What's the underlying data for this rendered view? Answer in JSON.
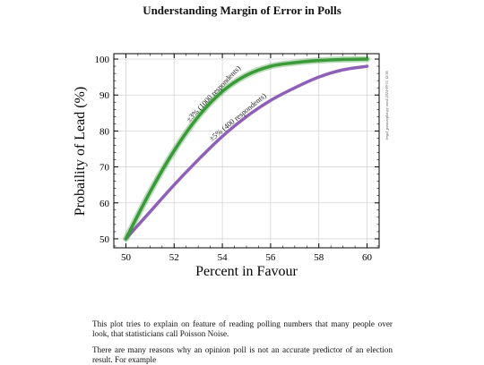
{
  "title": "Understanding Margin of Error in Polls",
  "paragraphs": [
    "This plot tries to explain on feature of reading polling numbers that many people over look, that statisticians call Poisson Noise.",
    "There are many reasons why an opinion poll is not an accurate predictor of an election result. For example"
  ],
  "chart_data": {
    "type": "line",
    "title": "",
    "xlabel": "Percent in Favour",
    "ylabel": "Probaility of Lead (%)",
    "xlim": [
      49.5,
      60.5
    ],
    "ylim": [
      47.5,
      101.5
    ],
    "x_ticks": [
      50,
      52,
      54,
      56,
      58,
      60
    ],
    "y_ticks": [
      50,
      60,
      70,
      80,
      90,
      100
    ],
    "grid": true,
    "watermark": "fergal_poissonplot.py rom4 2024-09-11 12:38",
    "series": [
      {
        "name": "±3% (1000 respondents)",
        "color": "#3a9a3a",
        "x": [
          50,
          51,
          52,
          53,
          54,
          55,
          56,
          57,
          58,
          59,
          60
        ],
        "y": [
          50,
          63,
          74.5,
          84,
          91,
          95.5,
          98,
          99,
          99.6,
          99.9,
          100
        ]
      },
      {
        "name": "±5% (400 respondents)",
        "color": "#8f60b8",
        "x": [
          50,
          51,
          52,
          53,
          54,
          55,
          56,
          57,
          58,
          59,
          60
        ],
        "y": [
          50,
          57.5,
          65,
          72,
          78.5,
          84,
          88.5,
          92,
          95,
          97,
          98
        ]
      }
    ]
  }
}
